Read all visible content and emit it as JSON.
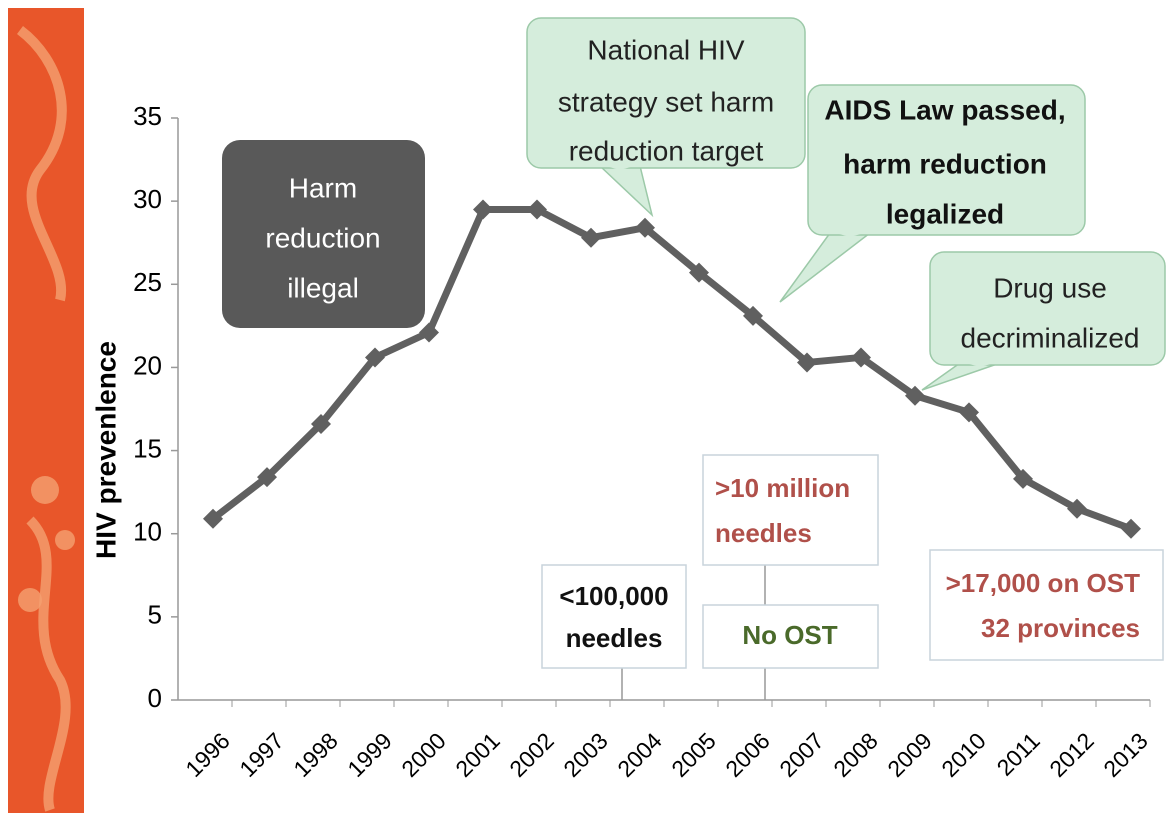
{
  "chart_data": {
    "type": "line",
    "y_label": "HIV prevenlence",
    "categories": [
      "1996",
      "1997",
      "1998",
      "1999",
      "2000",
      "2001",
      "2002",
      "2003",
      "2004",
      "2005",
      "2006",
      "2007",
      "2008",
      "2009",
      "2010",
      "2011",
      "2012",
      "2013"
    ],
    "series": [
      {
        "name": "HIV prevalence",
        "color": "#606060",
        "values": [
          10.9,
          13.4,
          16.6,
          20.6,
          22.1,
          29.5,
          29.5,
          27.8,
          28.4,
          25.7,
          23.1,
          20.3,
          20.6,
          18.3,
          17.3,
          13.3,
          11.5,
          10.3
        ]
      }
    ],
    "ylim": [
      0,
      35
    ],
    "yticks": [
      0,
      5,
      10,
      15,
      20,
      25,
      30,
      35
    ],
    "grid": false,
    "annotations": [
      {
        "lines": [
          "Harm",
          "reduction",
          "illegal"
        ]
      },
      {
        "lines": [
          "National HIV",
          "strategy set harm",
          "reduction target"
        ]
      },
      {
        "lines": [
          "AIDS Law passed,",
          "harm reduction",
          "legalized"
        ]
      },
      {
        "lines": [
          "Drug use",
          "decriminalized"
        ]
      },
      {
        "lines": [
          ">10 million",
          "needles"
        ]
      },
      {
        "lines": [
          "<100,000",
          "needles"
        ]
      },
      {
        "lines": [
          "No OST"
        ]
      },
      {
        "lines": [
          ">17,000 on OST",
          "32 provinces"
        ]
      }
    ]
  }
}
